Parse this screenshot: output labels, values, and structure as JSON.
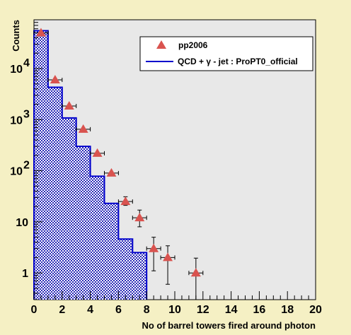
{
  "chart_data": {
    "type": "histogram",
    "xlabel": "No of barrel towers fired around photon",
    "ylabel": "Counts",
    "xlim": [
      0,
      20
    ],
    "ylim": [
      0.3,
      90000
    ],
    "yscale": "log",
    "grid": false,
    "legend_placement": "top-right",
    "x_ticks": [
      "0",
      "2",
      "4",
      "6",
      "8",
      "10",
      "12",
      "14",
      "16",
      "18",
      "20"
    ],
    "y_ticks": [
      {
        "value": 1,
        "label": "1"
      },
      {
        "value": 10,
        "label": "10"
      },
      {
        "value": 100,
        "label": "10",
        "exp": "2"
      },
      {
        "value": 1000,
        "label": "10",
        "exp": "3"
      },
      {
        "value": 10000,
        "label": "10",
        "exp": "4"
      }
    ],
    "histogram": {
      "name": "QCD + γ - jet : ProPT0_official",
      "color": "#0000cc",
      "bin_edges": [
        0,
        1,
        2,
        3,
        4,
        5,
        6,
        7,
        8
      ],
      "values": [
        55000,
        4300,
        1080,
        300,
        78,
        23,
        4.6,
        2.5
      ]
    },
    "points": {
      "name": "pp2006",
      "color": "#d9534f",
      "x": [
        0.5,
        1.5,
        2.5,
        3.5,
        4.5,
        5.5,
        6.5,
        7.5,
        8.5,
        9.5,
        11.5
      ],
      "y": [
        50000,
        6000,
        1850,
        650,
        220,
        90,
        25,
        12,
        3,
        2,
        1
      ],
      "y_err_low": [
        0,
        0,
        0,
        0,
        0,
        0,
        4,
        4,
        1.9,
        1.4,
        0.78
      ],
      "y_err_high": [
        0,
        0,
        0,
        0,
        0,
        0,
        6,
        5,
        2.0,
        1.4,
        0.95
      ],
      "x_err": 0.5
    }
  }
}
